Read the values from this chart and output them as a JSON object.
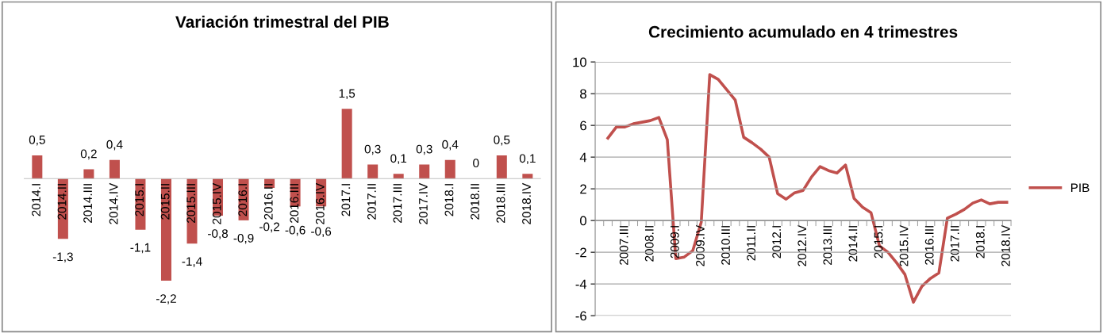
{
  "chart_data": [
    {
      "type": "bar",
      "title": "Variación trimestral del PIB",
      "categories": [
        "2014.I",
        "2014.II",
        "2014.III",
        "2014.IV",
        "2015.I",
        "2015.II",
        "2015.III",
        "2015.IV",
        "2016.I",
        "2016.II",
        "2016.III",
        "2016.IV",
        "2017.I",
        "2017.II",
        "2017.III",
        "2017.IV",
        "2018.I",
        "2018.II",
        "2018.III",
        "2018.IV"
      ],
      "values": [
        0.5,
        -1.3,
        0.2,
        0.4,
        -1.1,
        -2.2,
        -1.4,
        -0.8,
        -0.9,
        -0.2,
        -0.6,
        -0.6,
        1.5,
        0.3,
        0.1,
        0.3,
        0.4,
        0,
        0.5,
        0.1
      ],
      "value_labels": [
        "0,5",
        "-1,3",
        "0,2",
        "0,4",
        "-1,1",
        "-2,2",
        "-1,4",
        "-0,8",
        "-0,9",
        "-0,2",
        "-0,6",
        "-0,6",
        "1,5",
        "0,3",
        "0,1",
        "0,3",
        "0,4",
        "0",
        "0,5",
        "0,1"
      ],
      "color": "#c0504d"
    },
    {
      "type": "line",
      "title": "Crecimiento acumulado en 4 trimestres",
      "categories": [
        null,
        null,
        null,
        "2007.III",
        null,
        null,
        "2008.II",
        null,
        null,
        "2009.I",
        null,
        null,
        "2009.IV",
        null,
        null,
        "2010.III",
        null,
        null,
        "2011.II",
        null,
        null,
        "2012.I",
        null,
        null,
        "2012.IV",
        null,
        null,
        "2013.III",
        null,
        null,
        "2014.II",
        null,
        null,
        "2015.I",
        null,
        null,
        "2015.IV",
        null,
        null,
        "2016.III",
        null,
        null,
        "2017.II",
        null,
        null,
        "2018.I",
        null,
        null,
        "2018.IV"
      ],
      "series": [
        {
          "name": "PIB",
          "color": "#c0504d",
          "values": [
            null,
            5.2,
            5.9,
            5.9,
            6.1,
            6.2,
            6.3,
            6.5,
            5.1,
            -2.4,
            -2.3,
            -1.9,
            -0.1,
            9.2,
            8.9,
            8.25,
            7.6,
            5.25,
            4.9,
            4.5,
            4.0,
            1.7,
            1.35,
            1.75,
            1.9,
            2.75,
            3.4,
            3.15,
            3.0,
            3.5,
            1.4,
            0.85,
            0.5,
            -1.6,
            -2.0,
            -2.65,
            -3.4,
            -5.15,
            -4.15,
            -3.65,
            -3.3,
            0.15,
            0.4,
            0.7,
            1.1,
            1.3,
            1.05,
            1.15,
            1.15
          ]
        }
      ],
      "ylim": [
        -6,
        10
      ],
      "yticks": [
        -6,
        -4,
        -2,
        0,
        2,
        4,
        6,
        8,
        10
      ],
      "grid": "y",
      "legend": "right",
      "marker": "none",
      "line_style": "solid"
    }
  ]
}
